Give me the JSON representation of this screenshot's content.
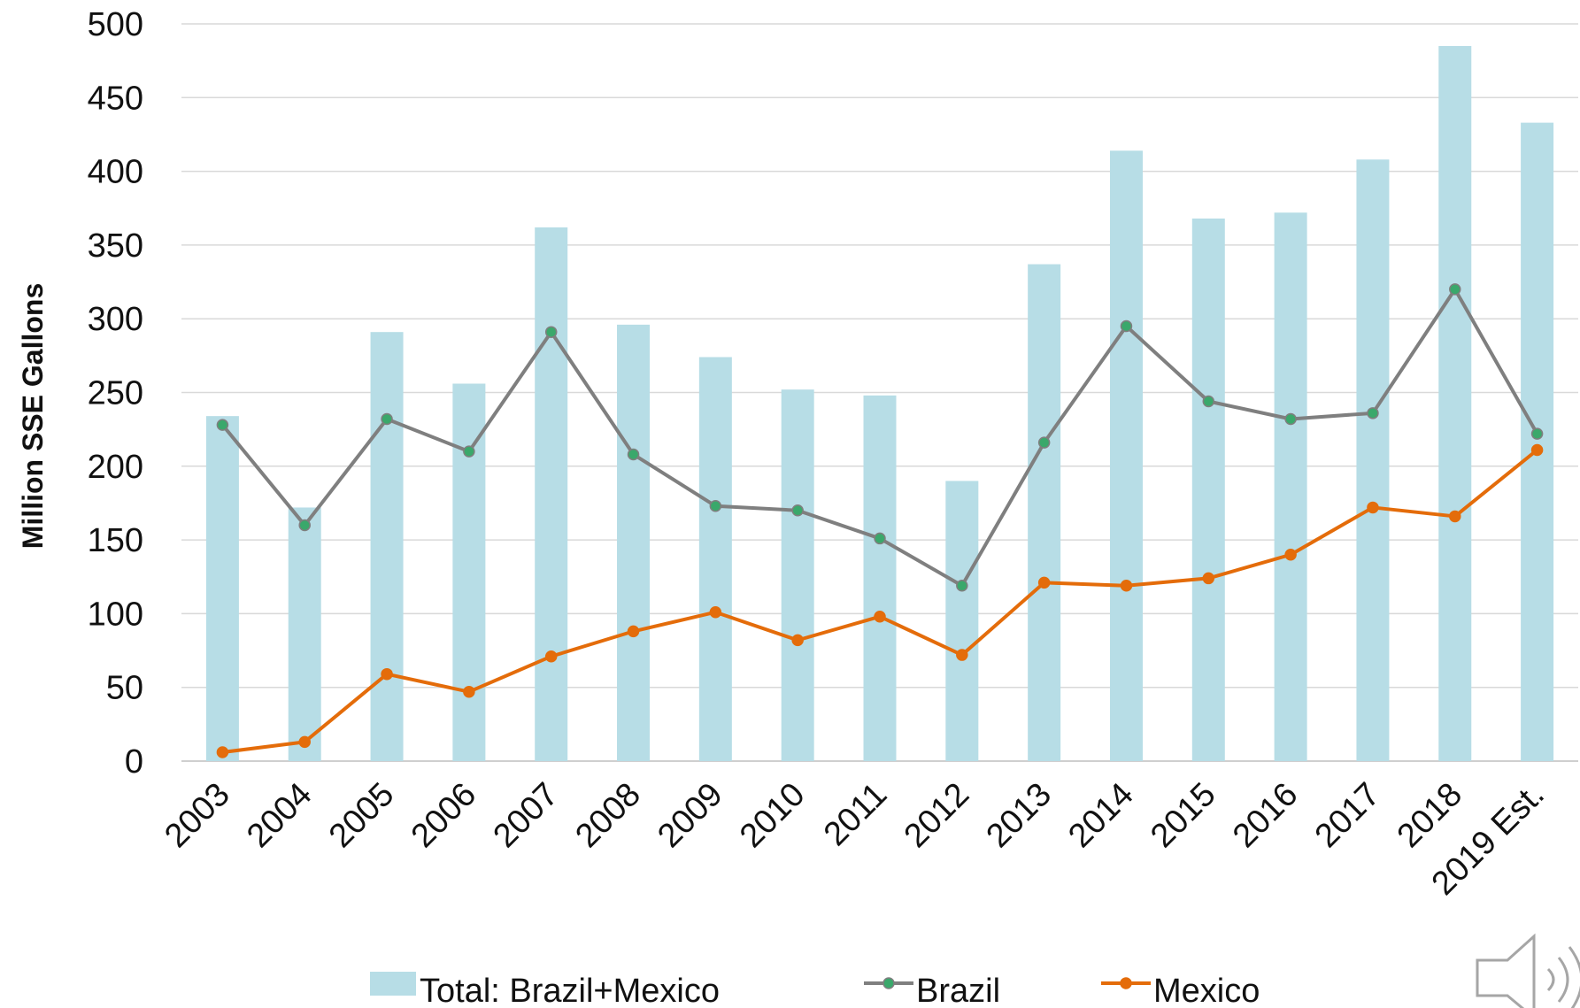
{
  "chart_data": {
    "type": "bar",
    "title": "",
    "xlabel": "",
    "ylabel": "Million SSE Gallons",
    "ylim": [
      0,
      500
    ],
    "yticks": [
      "0",
      "50",
      "100",
      "150",
      "200",
      "250",
      "300",
      "350",
      "400",
      "450",
      "500"
    ],
    "grid": true,
    "legend_position": "bottom",
    "categories": [
      "2003",
      "2004",
      "2005",
      "2006",
      "2007",
      "2008",
      "2009",
      "2010",
      "2011",
      "2012",
      "2013",
      "2014",
      "2015",
      "2016",
      "2017",
      "2018",
      "2019 Est."
    ],
    "series": [
      {
        "name": "Total: Brazil+Mexico",
        "type": "bar",
        "color": "#b7dde6",
        "values": [
          234,
          172,
          291,
          256,
          362,
          296,
          274,
          252,
          248,
          190,
          337,
          414,
          368,
          372,
          408,
          485,
          433
        ]
      },
      {
        "name": "Brazil",
        "type": "line",
        "color": "#7f7f7f",
        "marker_color": "#3aa86b",
        "values": [
          228,
          160,
          232,
          210,
          291,
          208,
          173,
          170,
          151,
          119,
          216,
          295,
          244,
          232,
          236,
          320,
          222
        ]
      },
      {
        "name": "Mexico",
        "type": "line",
        "color": "#e46c0a",
        "marker_color": "#e46c0a",
        "values": [
          6,
          13,
          59,
          47,
          71,
          88,
          101,
          82,
          98,
          72,
          121,
          119,
          124,
          140,
          172,
          166,
          211
        ]
      }
    ]
  },
  "overlay": {
    "speaker_icon": "speaker-icon"
  }
}
